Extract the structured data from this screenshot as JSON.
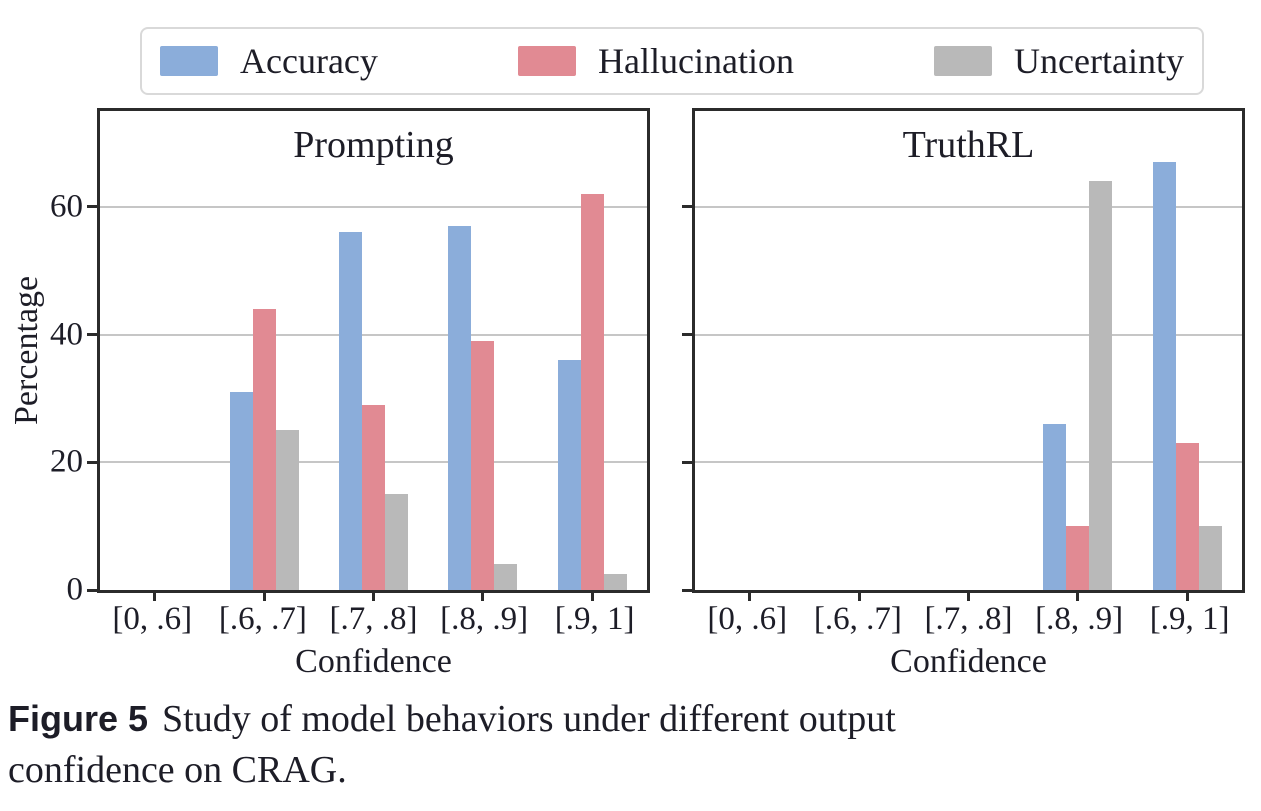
{
  "colors": {
    "accuracy_blue": "#8badda",
    "hallucination_pink": "#e18a93",
    "uncertainty_gray": "#b9b9b9",
    "axis": "#2b2b2b",
    "gridline": "#c6c6c6",
    "text": "#1d1d27",
    "legend_border": "#d9d9d9"
  },
  "legend": {
    "items": [
      {
        "label": "Accuracy",
        "color": "#8badda"
      },
      {
        "label": "Hallucination",
        "color": "#e18a93"
      },
      {
        "label": "Uncertainty",
        "color": "#b9b9b9"
      }
    ]
  },
  "chart_data": [
    {
      "type": "bar",
      "title": "Prompting",
      "categories": [
        "[0, .6]",
        "[.6, .7]",
        "[.7, .8]",
        "[.8, .9]",
        "[.9, 1]"
      ],
      "series": [
        {
          "name": "Accuracy",
          "color": "#8badda",
          "values": [
            0,
            31,
            56,
            57,
            36
          ]
        },
        {
          "name": "Hallucination",
          "color": "#e18a93",
          "values": [
            0,
            44,
            29,
            39,
            62
          ]
        },
        {
          "name": "Uncertainty",
          "color": "#b9b9b9",
          "values": [
            0,
            25,
            15,
            4,
            2.5
          ]
        }
      ],
      "xlabel": "Confidence",
      "ylabel": "Percentage",
      "ylim": [
        0,
        75
      ],
      "yticks": [
        0,
        20,
        40,
        60
      ],
      "grid": true,
      "legend_position": "top"
    },
    {
      "type": "bar",
      "title": "TruthRL",
      "categories": [
        "[0, .6]",
        "[.6, .7]",
        "[.7, .8]",
        "[.8, .9]",
        "[.9, 1]"
      ],
      "series": [
        {
          "name": "Accuracy",
          "color": "#8badda",
          "values": [
            0,
            0,
            0,
            26,
            67
          ]
        },
        {
          "name": "Hallucination",
          "color": "#e18a93",
          "values": [
            0,
            0,
            0,
            10,
            23
          ]
        },
        {
          "name": "Uncertainty",
          "color": "#b9b9b9",
          "values": [
            0,
            0,
            0,
            64,
            10
          ]
        }
      ],
      "xlabel": "Confidence",
      "ylabel": "",
      "ylim": [
        0,
        75
      ],
      "yticks": [
        0,
        20,
        40,
        60
      ],
      "grid": true,
      "legend_position": "top"
    }
  ],
  "caption": {
    "label": "Figure 5",
    "text": "Study of model behaviors under different output confidence on CRAG.",
    "line1": "Study of model behaviors under different output",
    "line2": "confidence on CRAG."
  }
}
